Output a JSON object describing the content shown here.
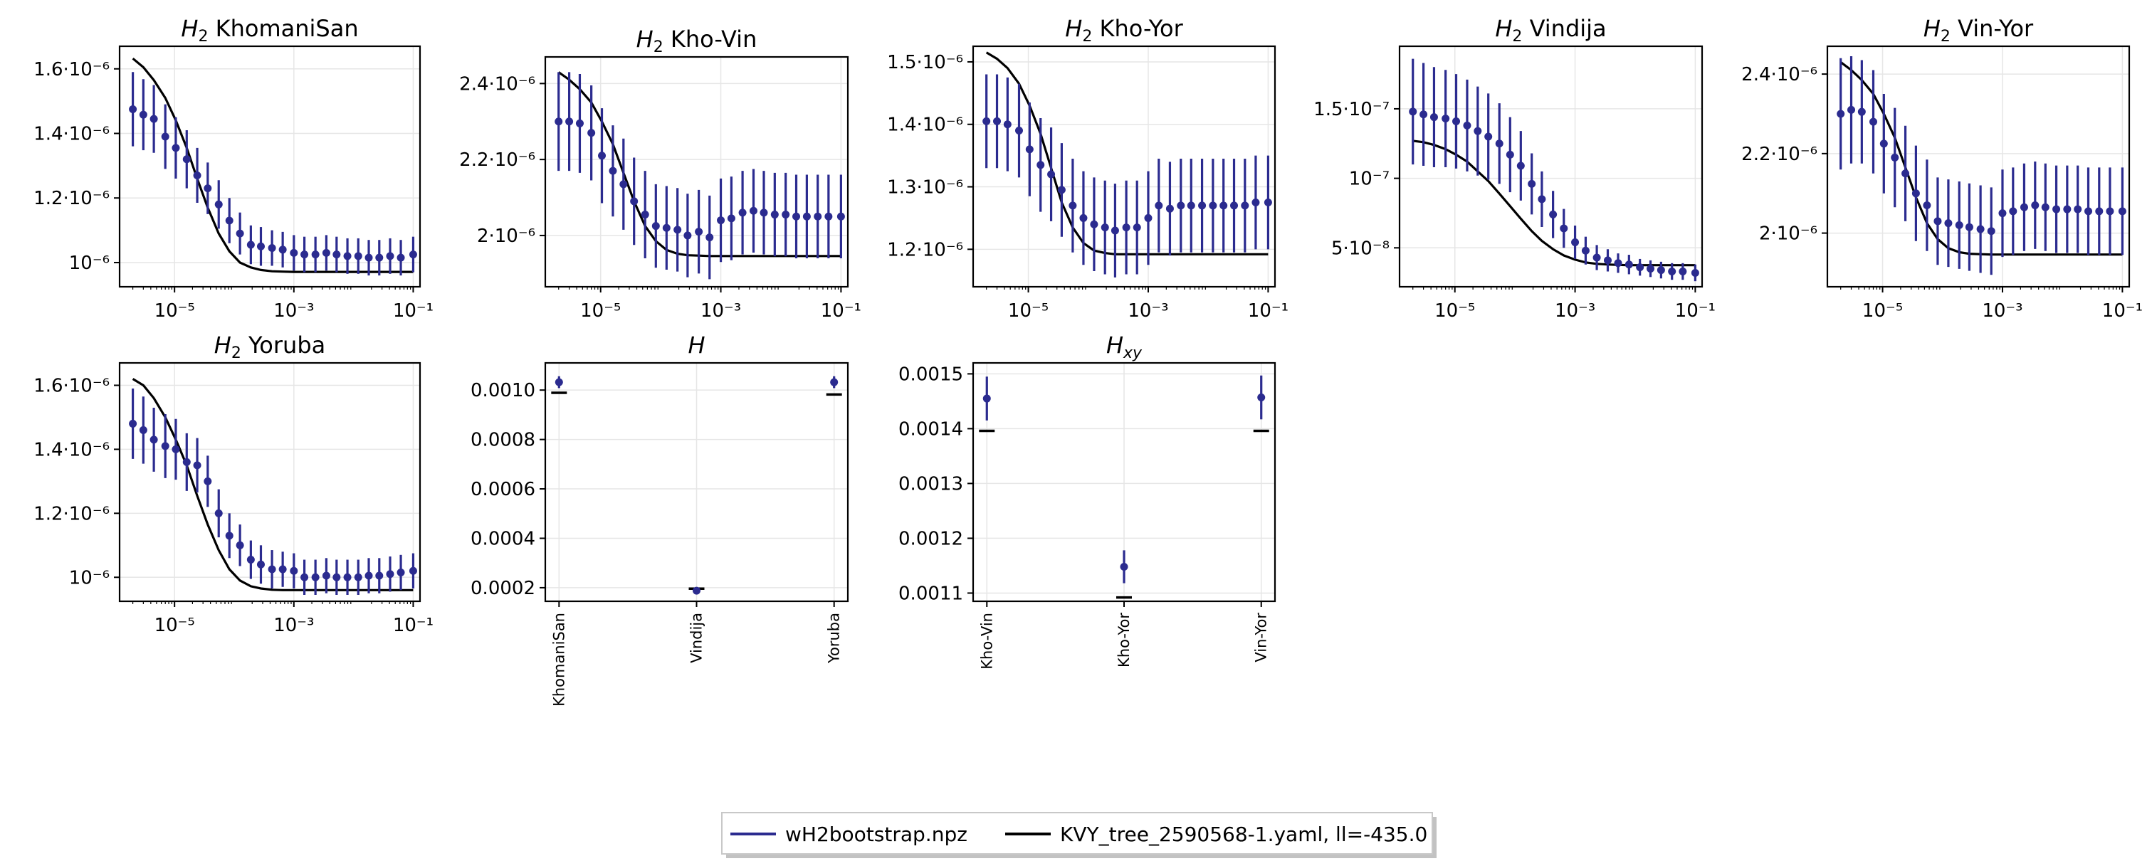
{
  "colors": {
    "data": "#2b2b8f",
    "model": "#000000",
    "grid": "#e6e6e6"
  },
  "chart_data": [
    {
      "type": "scatter",
      "title": "H₂ KhomaniSan",
      "x_scale": "log",
      "xlim": [
        1.2e-06,
        0.13
      ],
      "ylim": [
        9.25e-07,
        1.67e-06
      ],
      "xticks": [
        {
          "v": 1e-05,
          "label": "10⁻⁵"
        },
        {
          "v": 0.001,
          "label": "10⁻³"
        },
        {
          "v": 0.1,
          "label": "10⁻¹"
        }
      ],
      "yticks": [
        {
          "v": 1e-06,
          "label": "10⁻⁶"
        },
        {
          "v": 1.2e-06,
          "label": "1.2·10⁻⁶"
        },
        {
          "v": 1.4e-06,
          "label": "1.4·10⁻⁶"
        },
        {
          "v": 1.6e-06,
          "label": "1.6·10⁻⁶"
        }
      ],
      "x": [
        2e-06,
        3e-06,
        4.5e-06,
        7e-06,
        1.05e-05,
        1.6e-05,
        2.4e-05,
        3.6e-05,
        5.5e-05,
        8.3e-05,
        0.000125,
        0.00019,
        0.00028,
        0.00043,
        0.00065,
        0.001,
        0.0015,
        0.0023,
        0.0035,
        0.0052,
        0.0079,
        0.012,
        0.018,
        0.027,
        0.041,
        0.062,
        0.1
      ],
      "y": [
        1.475e-06,
        1.458e-06,
        1.445e-06,
        1.39e-06,
        1.355e-06,
        1.32e-06,
        1.27e-06,
        1.23e-06,
        1.18e-06,
        1.13e-06,
        1.09e-06,
        1.055e-06,
        1.05e-06,
        1.045e-06,
        1.04e-06,
        1.03e-06,
        1.025e-06,
        1.025e-06,
        1.03e-06,
        1.025e-06,
        1.02e-06,
        1.02e-06,
        1.015e-06,
        1.015e-06,
        1.02e-06,
        1.015e-06,
        1.025e-06
      ],
      "yerr": [
        1.15e-07,
        1.1e-07,
        1.05e-07,
        1e-07,
        9.5e-08,
        9e-08,
        8.5e-08,
        8e-08,
        7.5e-08,
        7e-08,
        6.5e-08,
        6e-08,
        6e-08,
        5.5e-08,
        5.5e-08,
        5.5e-08,
        5.5e-08,
        5.5e-08,
        5.5e-08,
        5.5e-08,
        5.5e-08,
        5.5e-08,
        5.5e-08,
        5.5e-08,
        5.5e-08,
        5.5e-08,
        5.5e-08
      ],
      "model": [
        1.632e-06,
        1.605e-06,
        1.565e-06,
        1.51e-06,
        1.44e-06,
        1.355e-06,
        1.26e-06,
        1.17e-06,
        1.09e-06,
        1.035e-06,
        1e-06,
        9.85e-07,
        9.77e-07,
        9.73e-07,
        9.72e-07,
        9.71e-07,
        9.71e-07,
        9.71e-07,
        9.71e-07,
        9.71e-07,
        9.71e-07,
        9.71e-07,
        9.71e-07,
        9.71e-07,
        9.71e-07,
        9.71e-07,
        9.71e-07
      ]
    },
    {
      "type": "scatter",
      "title": "H₂ Kho-Vin",
      "x_scale": "log",
      "xlim": [
        1.2e-06,
        0.13
      ],
      "ylim": [
        1.865e-06,
        2.47e-06
      ],
      "xticks": [
        {
          "v": 1e-05,
          "label": "10⁻⁵"
        },
        {
          "v": 0.001,
          "label": "10⁻³"
        },
        {
          "v": 0.1,
          "label": "10⁻¹"
        }
      ],
      "yticks": [
        {
          "v": 2e-06,
          "label": "2·10⁻⁶"
        },
        {
          "v": 2.2e-06,
          "label": "2.2·10⁻⁶"
        },
        {
          "v": 2.4e-06,
          "label": "2.4·10⁻⁶"
        }
      ],
      "x": [
        2e-06,
        3e-06,
        4.5e-06,
        7e-06,
        1.05e-05,
        1.6e-05,
        2.4e-05,
        3.6e-05,
        5.5e-05,
        8.3e-05,
        0.000125,
        0.00019,
        0.00028,
        0.00043,
        0.00065,
        0.001,
        0.0015,
        0.0023,
        0.0035,
        0.0052,
        0.0079,
        0.012,
        0.018,
        0.027,
        0.041,
        0.062,
        0.1
      ],
      "y": [
        2.3e-06,
        2.3e-06,
        2.295e-06,
        2.27e-06,
        2.21e-06,
        2.17e-06,
        2.135e-06,
        2.09e-06,
        2.055e-06,
        2.025e-06,
        2.02e-06,
        2.015e-06,
        2e-06,
        2.01e-06,
        1.995e-06,
        2.04e-06,
        2.045e-06,
        2.06e-06,
        2.065e-06,
        2.06e-06,
        2.055e-06,
        2.055e-06,
        2.05e-06,
        2.05e-06,
        2.05e-06,
        2.05e-06,
        2.05e-06
      ],
      "yerr": [
        1.3e-07,
        1.3e-07,
        1.3e-07,
        1.25e-07,
        1.25e-07,
        1.2e-07,
        1.2e-07,
        1.15e-07,
        1.15e-07,
        1.1e-07,
        1.1e-07,
        1.1e-07,
        1.1e-07,
        1.1e-07,
        1.1e-07,
        1.1e-07,
        1.1e-07,
        1.1e-07,
        1.1e-07,
        1.1e-07,
        1.1e-07,
        1.1e-07,
        1.1e-07,
        1.1e-07,
        1.1e-07,
        1.1e-07,
        1.1e-07
      ],
      "model": [
        2.43e-06,
        2.41e-06,
        2.385e-06,
        2.35e-06,
        2.3e-06,
        2.24e-06,
        2.165e-06,
        2.09e-06,
        2.025e-06,
        1.985e-06,
        1.962e-06,
        1.952e-06,
        1.948e-06,
        1.947e-06,
        1.946e-06,
        1.946e-06,
        1.946e-06,
        1.946e-06,
        1.946e-06,
        1.946e-06,
        1.946e-06,
        1.946e-06,
        1.946e-06,
        1.946e-06,
        1.946e-06,
        1.946e-06,
        1.946e-06
      ]
    },
    {
      "type": "scatter",
      "title": "H₂ Kho-Yor",
      "x_scale": "log",
      "xlim": [
        1.2e-06,
        0.13
      ],
      "ylim": [
        1.14e-06,
        1.525e-06
      ],
      "xticks": [
        {
          "v": 1e-05,
          "label": "10⁻⁵"
        },
        {
          "v": 0.001,
          "label": "10⁻³"
        },
        {
          "v": 0.1,
          "label": "10⁻¹"
        }
      ],
      "yticks": [
        {
          "v": 1.2e-06,
          "label": "1.2·10⁻⁶"
        },
        {
          "v": 1.3e-06,
          "label": "1.3·10⁻⁶"
        },
        {
          "v": 1.4e-06,
          "label": "1.4·10⁻⁶"
        },
        {
          "v": 1.5e-06,
          "label": "1.5·10⁻⁶"
        }
      ],
      "x": [
        2e-06,
        3e-06,
        4.5e-06,
        7e-06,
        1.05e-05,
        1.6e-05,
        2.4e-05,
        3.6e-05,
        5.5e-05,
        8.3e-05,
        0.000125,
        0.00019,
        0.00028,
        0.00043,
        0.00065,
        0.001,
        0.0015,
        0.0023,
        0.0035,
        0.0052,
        0.0079,
        0.012,
        0.018,
        0.027,
        0.041,
        0.062,
        0.1
      ],
      "y": [
        1.405e-06,
        1.405e-06,
        1.4e-06,
        1.39e-06,
        1.36e-06,
        1.335e-06,
        1.32e-06,
        1.295e-06,
        1.27e-06,
        1.25e-06,
        1.24e-06,
        1.235e-06,
        1.23e-06,
        1.235e-06,
        1.235e-06,
        1.25e-06,
        1.27e-06,
        1.265e-06,
        1.27e-06,
        1.27e-06,
        1.27e-06,
        1.27e-06,
        1.27e-06,
        1.27e-06,
        1.27e-06,
        1.275e-06,
        1.275e-06
      ],
      "yerr": [
        7.5e-08,
        7.5e-08,
        7.5e-08,
        7.5e-08,
        7.5e-08,
        7.5e-08,
        7.5e-08,
        7.5e-08,
        7.5e-08,
        7.5e-08,
        7.5e-08,
        7.5e-08,
        7.5e-08,
        7.5e-08,
        7.5e-08,
        7.5e-08,
        7.5e-08,
        7.5e-08,
        7.5e-08,
        7.5e-08,
        7.5e-08,
        7.5e-08,
        7.5e-08,
        7.5e-08,
        7.5e-08,
        7.5e-08,
        7.5e-08
      ],
      "model": [
        1.515e-06,
        1.505e-06,
        1.49e-06,
        1.465e-06,
        1.43e-06,
        1.385e-06,
        1.33e-06,
        1.275e-06,
        1.235e-06,
        1.21e-06,
        1.198e-06,
        1.194e-06,
        1.192e-06,
        1.192e-06,
        1.192e-06,
        1.192e-06,
        1.192e-06,
        1.192e-06,
        1.192e-06,
        1.192e-06,
        1.192e-06,
        1.192e-06,
        1.192e-06,
        1.192e-06,
        1.192e-06,
        1.192e-06,
        1.192e-06
      ]
    },
    {
      "type": "scatter",
      "title": "H₂ Vindija",
      "x_scale": "log",
      "xlim": [
        1.2e-06,
        0.13
      ],
      "ylim": [
        2.2e-08,
        1.95e-07
      ],
      "xticks": [
        {
          "v": 1e-05,
          "label": "10⁻⁵"
        },
        {
          "v": 0.001,
          "label": "10⁻³"
        },
        {
          "v": 0.1,
          "label": "10⁻¹"
        }
      ],
      "yticks": [
        {
          "v": 5e-08,
          "label": "5·10⁻⁸"
        },
        {
          "v": 1e-07,
          "label": "10⁻⁷"
        },
        {
          "v": 1.5e-07,
          "label": "1.5·10⁻⁷"
        }
      ],
      "x": [
        2e-06,
        3e-06,
        4.5e-06,
        7e-06,
        1.05e-05,
        1.6e-05,
        2.4e-05,
        3.6e-05,
        5.5e-05,
        8.3e-05,
        0.000125,
        0.00019,
        0.00028,
        0.00043,
        0.00065,
        0.001,
        0.0015,
        0.0023,
        0.0035,
        0.0052,
        0.0079,
        0.012,
        0.018,
        0.027,
        0.041,
        0.062,
        0.1
      ],
      "y": [
        1.48e-07,
        1.46e-07,
        1.44e-07,
        1.43e-07,
        1.41e-07,
        1.38e-07,
        1.34e-07,
        1.3e-07,
        1.25e-07,
        1.17e-07,
        1.09e-07,
        9.6e-08,
        8.5e-08,
        7.4e-08,
        6.4e-08,
        5.4e-08,
        4.8e-08,
        4.3e-08,
        4.1e-08,
        3.9e-08,
        3.8e-08,
        3.6e-08,
        3.5e-08,
        3.4e-08,
        3.3e-08,
        3.3e-08,
        3.2e-08
      ],
      "yerr": [
        3.8e-08,
        3.7e-08,
        3.6e-08,
        3.5e-08,
        3.4e-08,
        3.3e-08,
        3.2e-08,
        3.1e-08,
        2.9e-08,
        2.7e-08,
        2.5e-08,
        2.2e-08,
        2e-08,
        1.7e-08,
        1.4e-08,
        1.2e-08,
        1e-08,
        9e-09,
        8e-09,
        7e-09,
        7e-09,
        6e-09,
        6e-09,
        6e-09,
        6e-09,
        6e-09,
        6e-09
      ],
      "model": [
        1.27e-07,
        1.26e-07,
        1.24e-07,
        1.21e-07,
        1.17e-07,
        1.12e-07,
        1.05e-07,
        9.8e-08,
        8.9e-08,
        8e-08,
        7.1e-08,
        6.2e-08,
        5.5e-08,
        4.9e-08,
        4.45e-08,
        4.15e-08,
        3.95e-08,
        3.85e-08,
        3.8e-08,
        3.77e-08,
        3.75e-08,
        3.75e-08,
        3.75e-08,
        3.75e-08,
        3.75e-08,
        3.75e-08,
        3.75e-08
      ]
    },
    {
      "type": "scatter",
      "title": "H₂ Vin-Yor",
      "x_scale": "log",
      "xlim": [
        1.2e-06,
        0.13
      ],
      "ylim": [
        1.865e-06,
        2.47e-06
      ],
      "xticks": [
        {
          "v": 1e-05,
          "label": "10⁻⁵"
        },
        {
          "v": 0.001,
          "label": "10⁻³"
        },
        {
          "v": 0.1,
          "label": "10⁻¹"
        }
      ],
      "yticks": [
        {
          "v": 2e-06,
          "label": "2·10⁻⁶"
        },
        {
          "v": 2.2e-06,
          "label": "2.2·10⁻⁶"
        },
        {
          "v": 2.4e-06,
          "label": "2.4·10⁻⁶"
        }
      ],
      "x": [
        2e-06,
        3e-06,
        4.5e-06,
        7e-06,
        1.05e-05,
        1.6e-05,
        2.4e-05,
        3.6e-05,
        5.5e-05,
        8.3e-05,
        0.000125,
        0.00019,
        0.00028,
        0.00043,
        0.00065,
        0.001,
        0.0015,
        0.0023,
        0.0035,
        0.0052,
        0.0079,
        0.012,
        0.018,
        0.027,
        0.041,
        0.062,
        0.1
      ],
      "y": [
        2.3e-06,
        2.31e-06,
        2.305e-06,
        2.28e-06,
        2.225e-06,
        2.19e-06,
        2.15e-06,
        2.1e-06,
        2.07e-06,
        2.03e-06,
        2.025e-06,
        2.02e-06,
        2.015e-06,
        2.01e-06,
        2.005e-06,
        2.05e-06,
        2.055e-06,
        2.065e-06,
        2.07e-06,
        2.065e-06,
        2.06e-06,
        2.06e-06,
        2.06e-06,
        2.055e-06,
        2.055e-06,
        2.055e-06,
        2.055e-06
      ],
      "yerr": [
        1.4e-07,
        1.35e-07,
        1.3e-07,
        1.3e-07,
        1.25e-07,
        1.25e-07,
        1.2e-07,
        1.2e-07,
        1.15e-07,
        1.1e-07,
        1.1e-07,
        1.1e-07,
        1.1e-07,
        1.1e-07,
        1.1e-07,
        1.1e-07,
        1.1e-07,
        1.1e-07,
        1.1e-07,
        1.1e-07,
        1.1e-07,
        1.1e-07,
        1.1e-07,
        1.1e-07,
        1.1e-07,
        1.1e-07,
        1.1e-07
      ],
      "model": [
        2.43e-06,
        2.41e-06,
        2.385e-06,
        2.35e-06,
        2.3e-06,
        2.24e-06,
        2.165e-06,
        2.09e-06,
        2.025e-06,
        1.985e-06,
        1.962e-06,
        1.952e-06,
        1.948e-06,
        1.947e-06,
        1.946e-06,
        1.946e-06,
        1.946e-06,
        1.946e-06,
        1.946e-06,
        1.946e-06,
        1.946e-06,
        1.946e-06,
        1.946e-06,
        1.946e-06,
        1.946e-06,
        1.946e-06,
        1.946e-06
      ]
    },
    {
      "type": "scatter",
      "title": "H₂ Yoruba",
      "x_scale": "log",
      "xlim": [
        1.2e-06,
        0.13
      ],
      "ylim": [
        9.25e-07,
        1.67e-06
      ],
      "xticks": [
        {
          "v": 1e-05,
          "label": "10⁻⁵"
        },
        {
          "v": 0.001,
          "label": "10⁻³"
        },
        {
          "v": 0.1,
          "label": "10⁻¹"
        }
      ],
      "yticks": [
        {
          "v": 1e-06,
          "label": "10⁻⁶"
        },
        {
          "v": 1.2e-06,
          "label": "1.2·10⁻⁶"
        },
        {
          "v": 1.4e-06,
          "label": "1.4·10⁻⁶"
        },
        {
          "v": 1.6e-06,
          "label": "1.6·10⁻⁶"
        }
      ],
      "x": [
        2e-06,
        3e-06,
        4.5e-06,
        7e-06,
        1.05e-05,
        1.6e-05,
        2.4e-05,
        3.6e-05,
        5.5e-05,
        8.3e-05,
        0.000125,
        0.00019,
        0.00028,
        0.00043,
        0.00065,
        0.001,
        0.0015,
        0.0023,
        0.0035,
        0.0052,
        0.0079,
        0.012,
        0.018,
        0.027,
        0.041,
        0.062,
        0.1
      ],
      "y": [
        1.48e-06,
        1.46e-06,
        1.43e-06,
        1.41e-06,
        1.4e-06,
        1.36e-06,
        1.35e-06,
        1.3e-06,
        1.2e-06,
        1.13e-06,
        1.1e-06,
        1.055e-06,
        1.04e-06,
        1.025e-06,
        1.025e-06,
        1.02e-06,
        1e-06,
        1e-06,
        1.005e-06,
        1e-06,
        1e-06,
        1e-06,
        1.005e-06,
        1.005e-06,
        1.01e-06,
        1.015e-06,
        1.02e-06
      ],
      "yerr": [
        1.1e-07,
        1.05e-07,
        1e-07,
        1e-07,
        9.5e-08,
        9e-08,
        8.5e-08,
        8e-08,
        7.5e-08,
        7e-08,
        6.5e-08,
        6e-08,
        6e-08,
        6e-08,
        5.5e-08,
        5.5e-08,
        5.5e-08,
        5.5e-08,
        5.5e-08,
        5.5e-08,
        5.5e-08,
        5.5e-08,
        5.5e-08,
        5.5e-08,
        5.5e-08,
        5.5e-08,
        5.5e-08
      ],
      "model": [
        1.62e-06,
        1.6e-06,
        1.56e-06,
        1.5e-06,
        1.43e-06,
        1.35e-06,
        1.255e-06,
        1.165e-06,
        1.085e-06,
        1.025e-06,
        9.9e-07,
        9.72e-07,
        9.65e-07,
        9.61e-07,
        9.6e-07,
        9.6e-07,
        9.6e-07,
        9.6e-07,
        9.6e-07,
        9.6e-07,
        9.6e-07,
        9.6e-07,
        9.6e-07,
        9.6e-07,
        9.6e-07,
        9.6e-07,
        9.6e-07
      ]
    },
    {
      "type": "scatter",
      "title": "H",
      "x_scale": "categorical",
      "ylim": [
        0.000145,
        0.00111
      ],
      "categories": [
        "KhomaniSan",
        "Vindija",
        "Yoruba"
      ],
      "yticks": [
        {
          "v": 0.0002,
          "label": "0.0002"
        },
        {
          "v": 0.0004,
          "label": "0.0004"
        },
        {
          "v": 0.0006,
          "label": "0.0006"
        },
        {
          "v": 0.0008,
          "label": "0.0008"
        },
        {
          "v": 0.001,
          "label": "0.0010"
        }
      ],
      "y": [
        0.001032,
        0.000188,
        0.001032
      ],
      "yerr": [
        2.4e-05,
        6e-06,
        2.4e-05
      ],
      "model": [
        0.000989,
        0.000196,
        0.000982
      ]
    },
    {
      "type": "scatter",
      "title": "Hxy",
      "x_scale": "categorical",
      "ylim": [
        0.001085,
        0.00152
      ],
      "categories": [
        "Kho-Vin",
        "Kho-Yor",
        "Vin-Yor"
      ],
      "yticks": [
        {
          "v": 0.0011,
          "label": "0.0011"
        },
        {
          "v": 0.0012,
          "label": "0.0012"
        },
        {
          "v": 0.0013,
          "label": "0.0013"
        },
        {
          "v": 0.0014,
          "label": "0.0014"
        },
        {
          "v": 0.0015,
          "label": "0.0015"
        }
      ],
      "y": [
        0.001455,
        0.001148,
        0.001457
      ],
      "yerr": [
        4e-05,
        3e-05,
        4e-05
      ],
      "model": [
        0.001396,
        0.001092,
        0.001396
      ]
    }
  ],
  "legend": {
    "entries": [
      {
        "label": "wH2bootstrap.npz",
        "color": "#2b2b8f"
      },
      {
        "label": "KVY_tree_2590568-1.yaml, ll=-435.0",
        "color": "#000000"
      }
    ]
  }
}
